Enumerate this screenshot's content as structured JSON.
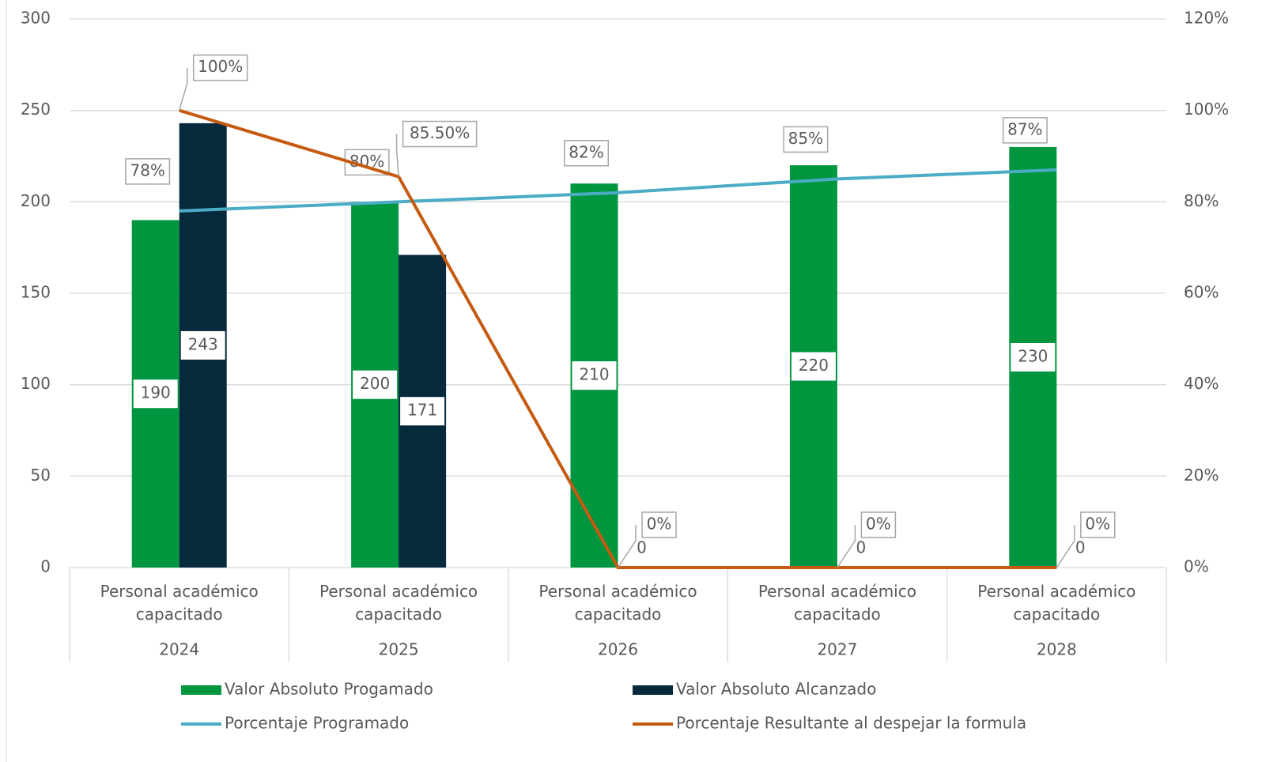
{
  "chart_data": {
    "type": "bar",
    "categories": [
      [
        "Personal académico capacitado",
        "2024"
      ],
      [
        "Personal académico capacitado",
        "2025"
      ],
      [
        "Personal académico capacitado",
        "2026"
      ],
      [
        "Personal académico capacitado",
        "2027"
      ],
      [
        "Personal académico capacitado",
        "2028"
      ]
    ],
    "series": [
      {
        "name": "Valor Absoluto Progamado",
        "type": "bar",
        "color": "#00963f",
        "values": [
          190,
          200,
          210,
          220,
          230
        ]
      },
      {
        "name": "Valor Absoluto Alcanzado",
        "type": "bar",
        "color": "#062a3c",
        "values": [
          243,
          171,
          0,
          0,
          0
        ]
      },
      {
        "name": "Porcentaje Programado",
        "type": "line",
        "axis": "y2",
        "color": "#4bacc6",
        "values": [
          78,
          80,
          82,
          85,
          87
        ],
        "value_labels": [
          "78%",
          "80%",
          "82%",
          "85%",
          "87%"
        ]
      },
      {
        "name": "Porcentaje Resultante al despejar la formula",
        "type": "line",
        "axis": "y2",
        "color": "#c55a11",
        "values": [
          100,
          85.5,
          0,
          0,
          0
        ],
        "value_labels": [
          "100%",
          "85.50%",
          "0%",
          "0%",
          "0%"
        ]
      }
    ],
    "ylim": [
      0,
      300
    ],
    "yticks": [
      0,
      50,
      100,
      150,
      200,
      250,
      300
    ],
    "y2lim": [
      0,
      120
    ],
    "y2ticks": [
      {
        "value": 0,
        "label": "0%"
      },
      {
        "value": 20,
        "label": "20%"
      },
      {
        "value": 40,
        "label": "40%"
      },
      {
        "value": 60,
        "label": "60%"
      },
      {
        "value": 80,
        "label": "80%"
      },
      {
        "value": 100,
        "label": "100%"
      },
      {
        "value": 120,
        "label": "120%"
      }
    ],
    "grid": true,
    "legend": "bottom"
  }
}
